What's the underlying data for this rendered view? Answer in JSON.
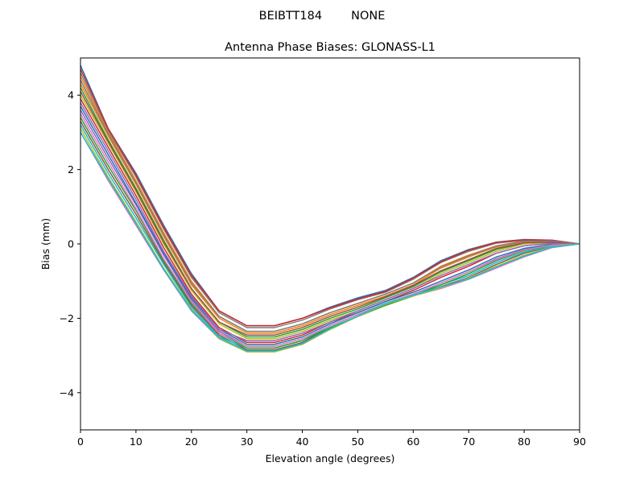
{
  "figure": {
    "suptitle_left": "BEIBTT184",
    "suptitle_right": "NONE"
  },
  "chart_data": {
    "type": "line",
    "title": "Antenna Phase Biases: GLONASS-L1",
    "xlabel": "Elevation angle (degrees)",
    "ylabel": "Bias (mm)",
    "xlim": [
      0,
      90
    ],
    "ylim": [
      -5,
      5
    ],
    "xticks": [
      0,
      10,
      20,
      30,
      40,
      50,
      60,
      70,
      80,
      90
    ],
    "yticks": [
      -4,
      -2,
      0,
      2,
      4
    ],
    "xtick_labels": [
      "0",
      "10",
      "20",
      "30",
      "40",
      "50",
      "60",
      "70",
      "80",
      "90"
    ],
    "ytick_labels": [
      "−4",
      "−2",
      "0",
      "2",
      "4"
    ],
    "grid": false,
    "legend": "none",
    "x": [
      0,
      5,
      10,
      15,
      20,
      25,
      30,
      35,
      40,
      45,
      50,
      55,
      60,
      65,
      70,
      75,
      80,
      85,
      90
    ],
    "series": [
      {
        "color": "#1f77b4",
        "values": [
          4.8,
          3.1,
          1.9,
          0.5,
          -0.8,
          -1.8,
          -2.2,
          -2.2,
          -2.0,
          -1.7,
          -1.45,
          -1.25,
          -0.9,
          -0.45,
          -0.15,
          0.05,
          0.12,
          0.1,
          0.0
        ]
      },
      {
        "color": "#ff7f0e",
        "values": [
          4.5,
          3.0,
          1.7,
          0.3,
          -1.0,
          -1.95,
          -2.35,
          -2.35,
          -2.15,
          -1.85,
          -1.6,
          -1.35,
          -1.05,
          -0.6,
          -0.3,
          -0.05,
          0.08,
          0.08,
          0.0
        ]
      },
      {
        "color": "#2ca02c",
        "values": [
          4.2,
          2.8,
          1.5,
          0.1,
          -1.2,
          -2.1,
          -2.5,
          -2.5,
          -2.3,
          -2.0,
          -1.75,
          -1.45,
          -1.15,
          -0.75,
          -0.45,
          -0.15,
          0.02,
          0.05,
          0.0
        ]
      },
      {
        "color": "#d62728",
        "values": [
          3.9,
          2.6,
          1.3,
          -0.1,
          -1.35,
          -2.25,
          -2.65,
          -2.65,
          -2.45,
          -2.1,
          -1.85,
          -1.55,
          -1.25,
          -0.9,
          -0.6,
          -0.25,
          -0.05,
          0.02,
          0.0
        ]
      },
      {
        "color": "#9467bd",
        "values": [
          3.6,
          2.3,
          1.05,
          -0.3,
          -1.5,
          -2.35,
          -2.75,
          -2.75,
          -2.55,
          -2.2,
          -1.9,
          -1.6,
          -1.35,
          -1.05,
          -0.75,
          -0.4,
          -0.15,
          -0.02,
          0.0
        ]
      },
      {
        "color": "#8c564b",
        "values": [
          3.3,
          2.0,
          0.8,
          -0.5,
          -1.65,
          -2.45,
          -2.85,
          -2.85,
          -2.65,
          -2.25,
          -1.95,
          -1.65,
          -1.4,
          -1.15,
          -0.9,
          -0.55,
          -0.25,
          -0.06,
          0.0
        ]
      },
      {
        "color": "#e377c2",
        "values": [
          3.0,
          1.7,
          0.5,
          -0.7,
          -1.8,
          -2.55,
          -2.9,
          -2.9,
          -2.7,
          -2.3,
          -1.95,
          -1.6,
          -1.4,
          -1.2,
          -0.95,
          -0.65,
          -0.35,
          -0.1,
          0.0
        ]
      },
      {
        "color": "#7f7f7f",
        "values": [
          4.6,
          3.05,
          1.8,
          0.4,
          -0.9,
          -1.85,
          -2.25,
          -2.25,
          -2.05,
          -1.75,
          -1.5,
          -1.3,
          -0.95,
          -0.5,
          -0.2,
          0.02,
          0.1,
          0.09,
          0.0
        ]
      },
      {
        "color": "#bcbd22",
        "values": [
          4.0,
          2.7,
          1.4,
          0.0,
          -1.25,
          -2.15,
          -2.55,
          -2.55,
          -2.35,
          -2.05,
          -1.8,
          -1.5,
          -1.2,
          -0.8,
          -0.5,
          -0.2,
          0.0,
          0.04,
          0.0
        ]
      },
      {
        "color": "#17becf",
        "values": [
          3.2,
          1.9,
          0.7,
          -0.55,
          -1.7,
          -2.5,
          -2.8,
          -2.8,
          -2.6,
          -2.2,
          -1.9,
          -1.6,
          -1.35,
          -1.1,
          -0.85,
          -0.5,
          -0.22,
          -0.05,
          0.0
        ]
      },
      {
        "color": "#1f77b4",
        "values": [
          3.7,
          2.4,
          1.1,
          -0.25,
          -1.45,
          -2.3,
          -2.7,
          -2.7,
          -2.5,
          -2.15,
          -1.85,
          -1.55,
          -1.3,
          -1.0,
          -0.7,
          -0.35,
          -0.12,
          -0.01,
          0.0
        ]
      },
      {
        "color": "#ff7f0e",
        "values": [
          4.3,
          2.9,
          1.6,
          0.2,
          -1.1,
          -2.0,
          -2.4,
          -2.4,
          -2.2,
          -1.9,
          -1.65,
          -1.4,
          -1.1,
          -0.65,
          -0.35,
          -0.08,
          0.06,
          0.07,
          0.0
        ]
      },
      {
        "color": "#2ca02c",
        "values": [
          3.4,
          2.1,
          0.9,
          -0.45,
          -1.6,
          -2.4,
          -2.8,
          -2.8,
          -2.6,
          -2.25,
          -1.95,
          -1.65,
          -1.4,
          -1.1,
          -0.8,
          -0.45,
          -0.18,
          -0.03,
          0.0
        ]
      },
      {
        "color": "#d62728",
        "values": [
          4.7,
          3.1,
          1.85,
          0.45,
          -0.85,
          -1.8,
          -2.2,
          -2.2,
          -2.0,
          -1.72,
          -1.48,
          -1.28,
          -0.92,
          -0.48,
          -0.17,
          0.04,
          0.11,
          0.1,
          0.0
        ]
      },
      {
        "color": "#9467bd",
        "values": [
          3.8,
          2.5,
          1.2,
          -0.2,
          -1.4,
          -2.3,
          -2.6,
          -2.6,
          -2.4,
          -2.1,
          -1.8,
          -1.5,
          -1.2,
          -0.85,
          -0.55,
          -0.25,
          -0.05,
          0.02,
          0.0
        ]
      },
      {
        "color": "#8c564b",
        "values": [
          4.1,
          2.75,
          1.45,
          0.05,
          -1.2,
          -2.1,
          -2.45,
          -2.45,
          -2.25,
          -1.95,
          -1.7,
          -1.42,
          -1.12,
          -0.72,
          -0.42,
          -0.12,
          0.03,
          0.05,
          0.0
        ]
      },
      {
        "color": "#e377c2",
        "values": [
          3.5,
          2.2,
          0.95,
          -0.4,
          -1.55,
          -2.4,
          -2.75,
          -2.75,
          -2.55,
          -2.2,
          -1.9,
          -1.6,
          -1.35,
          -1.05,
          -0.75,
          -0.42,
          -0.16,
          -0.03,
          0.0
        ]
      },
      {
        "color": "#7f7f7f",
        "values": [
          4.4,
          2.95,
          1.65,
          0.25,
          -1.05,
          -1.95,
          -2.35,
          -2.35,
          -2.15,
          -1.85,
          -1.6,
          -1.35,
          -1.05,
          -0.62,
          -0.32,
          -0.06,
          0.07,
          0.08,
          0.0
        ]
      },
      {
        "color": "#bcbd22",
        "values": [
          3.1,
          1.8,
          0.6,
          -0.65,
          -1.75,
          -2.55,
          -2.9,
          -2.9,
          -2.7,
          -2.3,
          -1.95,
          -1.62,
          -1.4,
          -1.18,
          -0.92,
          -0.6,
          -0.3,
          -0.08,
          0.0
        ]
      },
      {
        "color": "#17becf",
        "values": [
          3.0,
          1.75,
          0.55,
          -0.68,
          -1.78,
          -2.52,
          -2.88,
          -2.88,
          -2.68,
          -2.28,
          -1.94,
          -1.6,
          -1.38,
          -1.16,
          -0.94,
          -0.62,
          -0.33,
          -0.09,
          0.0
        ]
      }
    ]
  }
}
